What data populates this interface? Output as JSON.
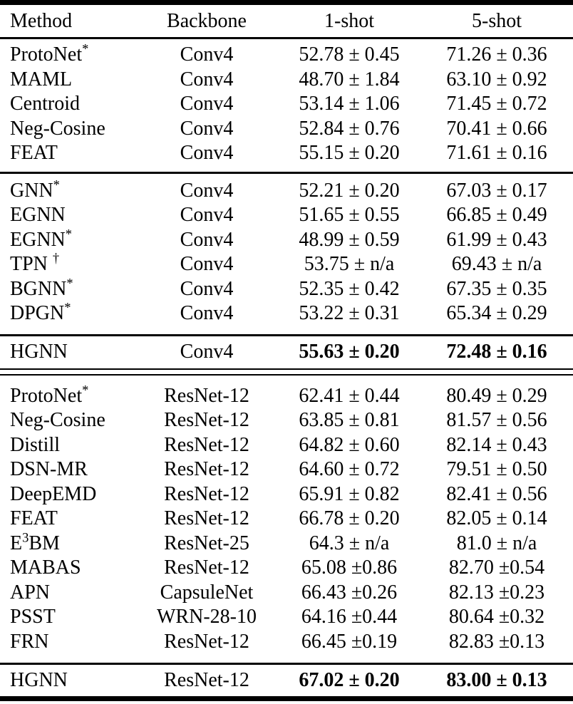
{
  "colors": {
    "background": "#ffffff",
    "text": "#000000",
    "rule": "#000000"
  },
  "table": {
    "columns": [
      "Method",
      "Backbone",
      "1-shot",
      "5-shot"
    ],
    "plus_minus_symbol": "±",
    "sections": [
      {
        "rows": [
          {
            "method": [
              {
                "t": "ProtoNet"
              },
              {
                "t": "*",
                "sup": true
              }
            ],
            "backbone": "Conv4",
            "one_shot": "52.78 ± 0.45",
            "five_shot": "71.26 ± 0.36",
            "bold": false
          },
          {
            "method": [
              {
                "t": "MAML"
              }
            ],
            "backbone": "Conv4",
            "one_shot": "48.70 ± 1.84",
            "five_shot": "63.10 ± 0.92",
            "bold": false
          },
          {
            "method": [
              {
                "t": "Centroid"
              }
            ],
            "backbone": "Conv4",
            "one_shot": "53.14 ± 1.06",
            "five_shot": "71.45 ± 0.72",
            "bold": false
          },
          {
            "method": [
              {
                "t": "Neg-Cosine"
              }
            ],
            "backbone": "Conv4",
            "one_shot": "52.84 ± 0.76",
            "five_shot": "70.41 ± 0.66",
            "bold": false
          },
          {
            "method": [
              {
                "t": "FEAT"
              }
            ],
            "backbone": "Conv4",
            "one_shot": "55.15 ± 0.20",
            "five_shot": "71.61 ± 0.16",
            "bold": false
          }
        ]
      },
      {
        "rows": [
          {
            "method": [
              {
                "t": "GNN"
              },
              {
                "t": "*",
                "sup": true
              }
            ],
            "backbone": "Conv4",
            "one_shot": "52.21 ± 0.20",
            "five_shot": "67.03 ± 0.17",
            "bold": false
          },
          {
            "method": [
              {
                "t": "EGNN"
              }
            ],
            "backbone": "Conv4",
            "one_shot": "51.65 ± 0.55",
            "five_shot": "66.85 ± 0.49",
            "bold": false
          },
          {
            "method": [
              {
                "t": "EGNN"
              },
              {
                "t": "*",
                "sup": true
              }
            ],
            "backbone": "Conv4",
            "one_shot": "48.99 ± 0.59",
            "five_shot": "61.99 ± 0.43",
            "bold": false
          },
          {
            "method": [
              {
                "t": "TPN "
              },
              {
                "t": "†",
                "sup": true
              }
            ],
            "backbone": "Conv4",
            "one_shot": "53.75 ± n/a",
            "five_shot": "69.43 ± n/a",
            "bold": false
          },
          {
            "method": [
              {
                "t": "BGNN"
              },
              {
                "t": "*",
                "sup": true
              }
            ],
            "backbone": "Conv4",
            "one_shot": "52.35 ± 0.42",
            "five_shot": "67.35 ± 0.35",
            "bold": false
          },
          {
            "method": [
              {
                "t": "DPGN"
              },
              {
                "t": "*",
                "sup": true
              }
            ],
            "backbone": "Conv4",
            "one_shot": "53.22 ± 0.31",
            "five_shot": "65.34 ± 0.29",
            "bold": false
          }
        ]
      },
      {
        "highlight": true,
        "rows": [
          {
            "method": [
              {
                "t": "HGNN"
              }
            ],
            "backbone": "Conv4",
            "one_shot": "55.63 ± 0.20",
            "five_shot": "72.48 ± 0.16",
            "bold": true
          }
        ]
      },
      {
        "rows": [
          {
            "method": [
              {
                "t": "ProtoNet"
              },
              {
                "t": "*",
                "sup": true
              }
            ],
            "backbone": "ResNet-12",
            "one_shot": "62.41 ± 0.44",
            "five_shot": "80.49 ± 0.29",
            "bold": false
          },
          {
            "method": [
              {
                "t": "Neg-Cosine"
              }
            ],
            "backbone": "ResNet-12",
            "one_shot": "63.85 ± 0.81",
            "five_shot": "81.57 ± 0.56",
            "bold": false
          },
          {
            "method": [
              {
                "t": "Distill"
              }
            ],
            "backbone": "ResNet-12",
            "one_shot": "64.82 ± 0.60",
            "five_shot": "82.14 ± 0.43",
            "bold": false
          },
          {
            "method": [
              {
                "t": "DSN-MR"
              }
            ],
            "backbone": "ResNet-12",
            "one_shot": "64.60 ± 0.72",
            "five_shot": "79.51 ± 0.50",
            "bold": false
          },
          {
            "method": [
              {
                "t": "DeepEMD"
              }
            ],
            "backbone": "ResNet-12",
            "one_shot": "65.91 ± 0.82",
            "five_shot": "82.41 ± 0.56",
            "bold": false
          },
          {
            "method": [
              {
                "t": "FEAT"
              }
            ],
            "backbone": "ResNet-12",
            "one_shot": "66.78 ± 0.20",
            "five_shot": "82.05 ± 0.14",
            "bold": false
          },
          {
            "method": [
              {
                "t": "E"
              },
              {
                "t": "3",
                "sup": true
              },
              {
                "t": "BM"
              }
            ],
            "backbone": "ResNet-25",
            "one_shot": "64.3 ± n/a",
            "five_shot": "81.0 ± n/a",
            "bold": false
          },
          {
            "method": [
              {
                "t": "MABAS"
              }
            ],
            "backbone": "ResNet-12",
            "one_shot": "65.08 ±0.86",
            "five_shot": "82.70 ±0.54",
            "bold": false
          },
          {
            "method": [
              {
                "t": "APN"
              }
            ],
            "backbone": "CapsuleNet",
            "one_shot": "66.43 ±0.26",
            "five_shot": "82.13 ±0.23",
            "bold": false
          },
          {
            "method": [
              {
                "t": "PSST"
              }
            ],
            "backbone": "WRN-28-10",
            "one_shot": "64.16 ±0.44",
            "five_shot": "80.64 ±0.32",
            "bold": false
          },
          {
            "method": [
              {
                "t": "FRN"
              }
            ],
            "backbone": "ResNet-12",
            "one_shot": "66.45 ±0.19",
            "five_shot": "82.83 ±0.13",
            "bold": false
          }
        ]
      },
      {
        "highlight": true,
        "rows": [
          {
            "method": [
              {
                "t": "HGNN"
              }
            ],
            "backbone": "ResNet-12",
            "one_shot": "67.02 ± 0.20",
            "five_shot": "83.00 ± 0.13",
            "bold": true
          }
        ]
      }
    ]
  }
}
